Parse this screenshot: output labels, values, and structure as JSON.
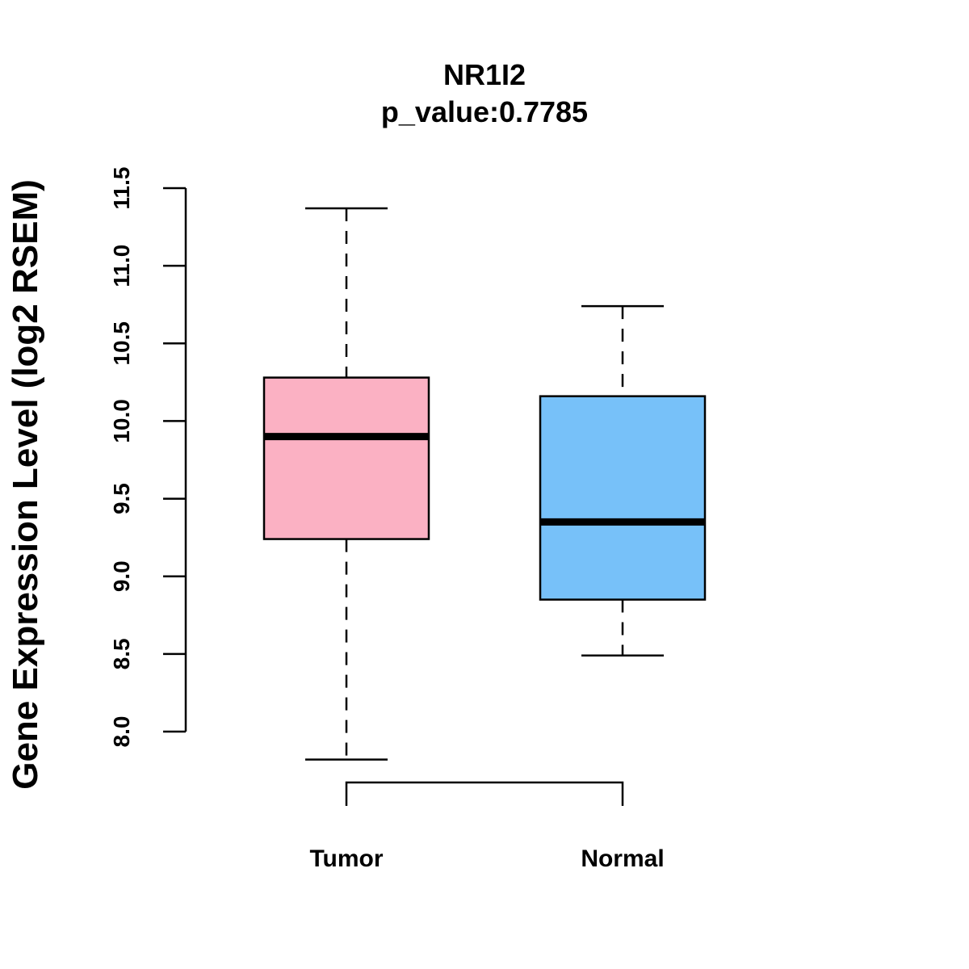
{
  "chart_data": {
    "type": "boxplot",
    "title": "NR1I2",
    "subtitle": "p_value:0.7785",
    "xlabel": "",
    "ylabel": "Gene Expression Level (log2 RSEM)",
    "ylim": [
      8.0,
      11.5
    ],
    "yticks": [
      "8.0",
      "8.5",
      "9.0",
      "9.5",
      "10.0",
      "10.5",
      "11.0",
      "11.5"
    ],
    "categories": [
      "Tumor",
      "Normal"
    ],
    "boxes": [
      {
        "name": "Tumor",
        "color": "#FBB1C3",
        "whisker_low": 7.82,
        "q1": 9.24,
        "median": 9.9,
        "q3": 10.28,
        "whisker_high": 11.37
      },
      {
        "name": "Normal",
        "color": "#77C1F9",
        "whisker_low": 8.49,
        "q1": 8.85,
        "median": 9.35,
        "q3": 10.16,
        "whisker_high": 10.74
      }
    ],
    "comparison_bracket": {
      "from": "Tumor",
      "to": "Normal",
      "label": ""
    }
  }
}
